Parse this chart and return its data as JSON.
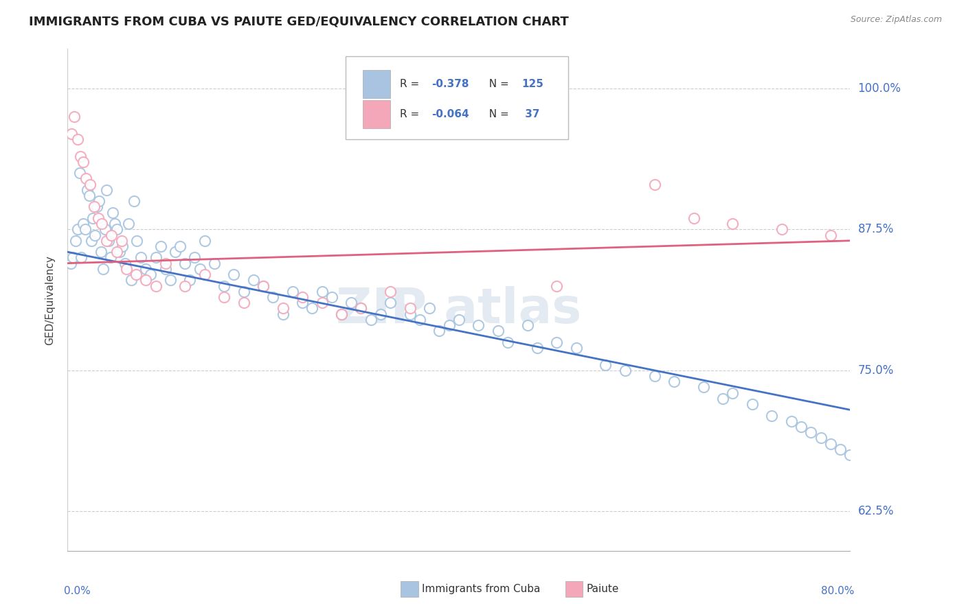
{
  "title": "IMMIGRANTS FROM CUBA VS PAIUTE GED/EQUIVALENCY CORRELATION CHART",
  "source": "Source: ZipAtlas.com",
  "ylabel": "GED/Equivalency",
  "yticks": [
    62.5,
    75.0,
    87.5,
    100.0
  ],
  "ytick_labels": [
    "62.5%",
    "75.0%",
    "87.5%",
    "100.0%"
  ],
  "xmin": 0.0,
  "xmax": 80.0,
  "ymin": 59.0,
  "ymax": 103.5,
  "blue_color": "#a8c4e0",
  "pink_color": "#f4a7b9",
  "blue_line_color": "#4472c4",
  "pink_line_color": "#e06080",
  "title_color": "#222222",
  "axis_label_color": "#4472c4",
  "watermark_color": "#ccd9e8",
  "blue_scatter_x": [
    0.3,
    0.5,
    0.8,
    1.0,
    1.2,
    1.4,
    1.6,
    1.8,
    2.0,
    2.2,
    2.4,
    2.6,
    2.8,
    3.0,
    3.2,
    3.4,
    3.6,
    3.8,
    4.0,
    4.2,
    4.4,
    4.6,
    4.8,
    5.0,
    5.3,
    5.6,
    5.9,
    6.2,
    6.5,
    6.8,
    7.1,
    7.5,
    8.0,
    8.5,
    9.0,
    9.5,
    10.0,
    10.5,
    11.0,
    11.5,
    12.0,
    12.5,
    13.0,
    13.5,
    14.0,
    15.0,
    16.0,
    17.0,
    18.0,
    19.0,
    20.0,
    21.0,
    22.0,
    23.0,
    24.0,
    25.0,
    26.0,
    27.0,
    28.0,
    29.0,
    30.0,
    31.0,
    32.0,
    33.0,
    35.0,
    36.0,
    37.0,
    38.0,
    39.0,
    40.0,
    42.0,
    44.0,
    45.0,
    47.0,
    48.0,
    50.0,
    52.0,
    55.0,
    57.0,
    60.0,
    62.0,
    65.0,
    67.0,
    68.0,
    70.0,
    72.0,
    74.0,
    75.0,
    76.0,
    77.0,
    78.0,
    79.0,
    80.0
  ],
  "blue_scatter_y": [
    84.5,
    85.0,
    86.5,
    87.5,
    92.5,
    85.0,
    88.0,
    87.5,
    91.0,
    90.5,
    86.5,
    88.5,
    87.0,
    89.5,
    90.0,
    85.5,
    84.0,
    87.5,
    91.0,
    86.5,
    85.0,
    89.0,
    88.0,
    87.5,
    85.5,
    86.0,
    84.5,
    88.0,
    83.0,
    90.0,
    86.5,
    85.0,
    84.0,
    83.5,
    85.0,
    86.0,
    84.0,
    83.0,
    85.5,
    86.0,
    84.5,
    83.0,
    85.0,
    84.0,
    86.5,
    84.5,
    82.5,
    83.5,
    82.0,
    83.0,
    82.5,
    81.5,
    80.0,
    82.0,
    81.0,
    80.5,
    82.0,
    81.5,
    80.0,
    81.0,
    80.5,
    79.5,
    80.0,
    81.0,
    80.0,
    79.5,
    80.5,
    78.5,
    79.0,
    79.5,
    79.0,
    78.5,
    77.5,
    79.0,
    77.0,
    77.5,
    77.0,
    75.5,
    75.0,
    74.5,
    74.0,
    73.5,
    72.5,
    73.0,
    72.0,
    71.0,
    70.5,
    70.0,
    69.5,
    69.0,
    68.5,
    68.0,
    67.5
  ],
  "pink_scatter_x": [
    0.4,
    0.7,
    1.0,
    1.3,
    1.6,
    1.9,
    2.3,
    2.7,
    3.1,
    3.5,
    4.0,
    4.5,
    5.0,
    5.5,
    6.0,
    7.0,
    8.0,
    9.0,
    10.0,
    12.0,
    14.0,
    16.0,
    18.0,
    20.0,
    22.0,
    24.0,
    26.0,
    28.0,
    30.0,
    33.0,
    35.0,
    50.0,
    60.0,
    64.0,
    68.0,
    73.0,
    78.0
  ],
  "pink_scatter_y": [
    96.0,
    97.5,
    95.5,
    94.0,
    93.5,
    92.0,
    91.5,
    89.5,
    88.5,
    88.0,
    86.5,
    87.0,
    85.5,
    86.5,
    84.0,
    83.5,
    83.0,
    82.5,
    84.5,
    82.5,
    83.5,
    81.5,
    81.0,
    82.5,
    80.5,
    81.5,
    81.0,
    80.0,
    80.5,
    82.0,
    80.5,
    82.5,
    91.5,
    88.5,
    88.0,
    87.5,
    87.0
  ],
  "blue_trend_x": [
    0.0,
    80.0
  ],
  "blue_trend_y": [
    85.5,
    71.5
  ],
  "pink_trend_x": [
    0.0,
    80.0
  ],
  "pink_trend_y": [
    84.5,
    86.5
  ]
}
